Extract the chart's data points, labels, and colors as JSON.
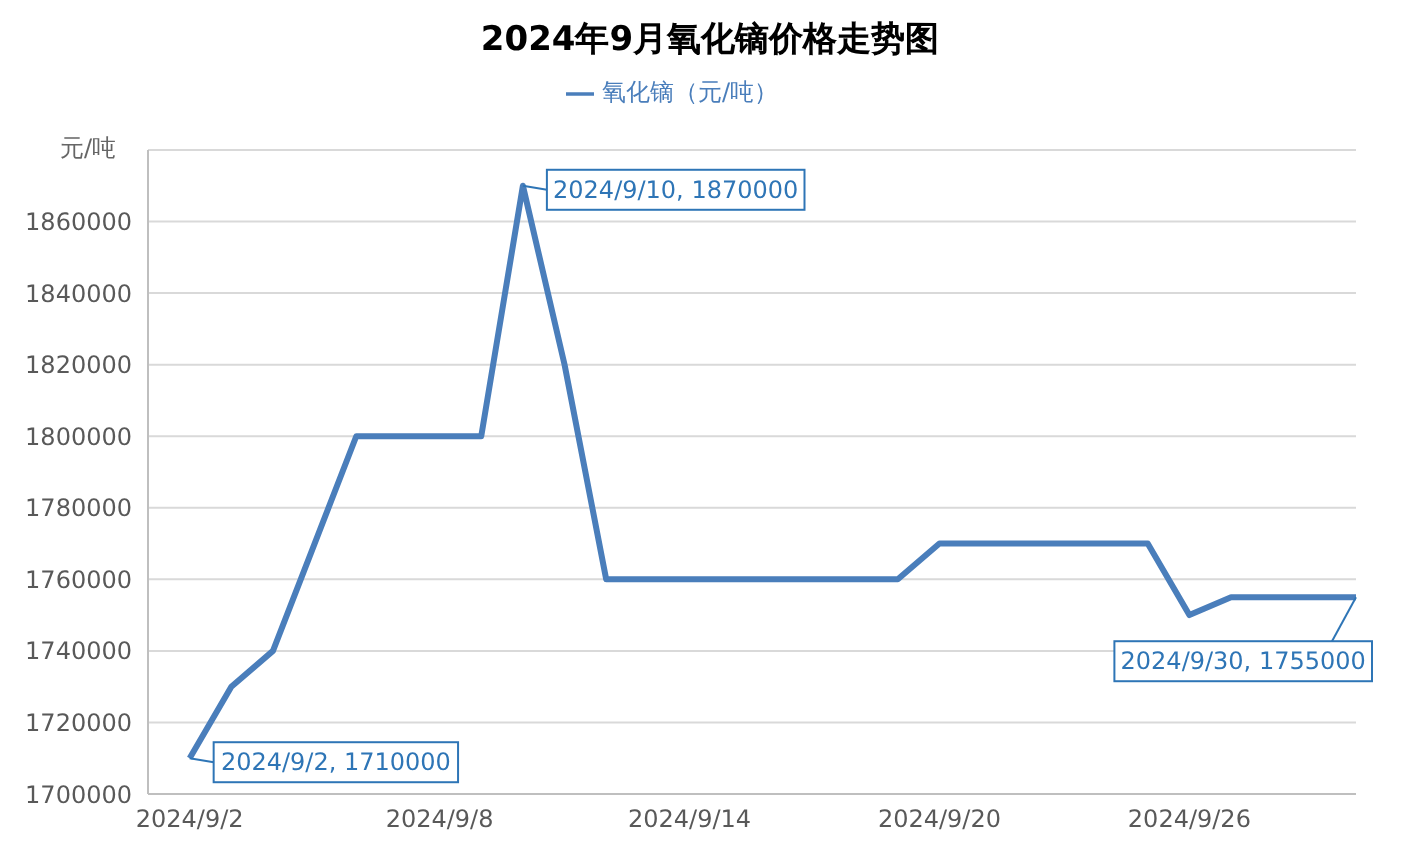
{
  "chart_data": {
    "type": "line",
    "title": "2024年9月氧化镝价格走势图",
    "ylabel": "元/吨",
    "x": [
      "2024-09-02",
      "2024-09-03",
      "2024-09-04",
      "2024-09-05",
      "2024-09-06",
      "2024-09-07",
      "2024-09-08",
      "2024-09-09",
      "2024-09-10",
      "2024-09-11",
      "2024-09-12",
      "2024-09-13",
      "2024-09-14",
      "2024-09-15",
      "2024-09-16",
      "2024-09-17",
      "2024-09-18",
      "2024-09-19",
      "2024-09-20",
      "2024-09-21",
      "2024-09-22",
      "2024-09-23",
      "2024-09-24",
      "2024-09-25",
      "2024-09-26",
      "2024-09-27",
      "2024-09-28",
      "2024-09-29",
      "2024-09-30"
    ],
    "series": [
      {
        "name": "氧化镝（元/吨）",
        "color": "#4a7ebb",
        "values": [
          1710000,
          1730000,
          1740000,
          1770000,
          1800000,
          1800000,
          1800000,
          1800000,
          1870000,
          1820000,
          1760000,
          1760000,
          1760000,
          1760000,
          1760000,
          1760000,
          1760000,
          1760000,
          1770000,
          1770000,
          1770000,
          1770000,
          1770000,
          1770000,
          1750000,
          1755000,
          1755000,
          1755000,
          1755000
        ]
      }
    ],
    "xlim": [
      "2024-09-01",
      "2024-09-30"
    ],
    "xticks": [
      {
        "value": "2024-09-02",
        "label": "2024/9/2"
      },
      {
        "value": "2024-09-08",
        "label": "2024/9/8"
      },
      {
        "value": "2024-09-14",
        "label": "2024/9/14"
      },
      {
        "value": "2024-09-20",
        "label": "2024/9/20"
      },
      {
        "value": "2024-09-26",
        "label": "2024/9/26"
      }
    ],
    "ylim": [
      1700000,
      1880000
    ],
    "yticks": [
      1700000,
      1720000,
      1740000,
      1760000,
      1780000,
      1800000,
      1820000,
      1840000,
      1860000
    ],
    "grid": "y",
    "legend": "top",
    "marker": "none",
    "line_style": "solid",
    "annotations": [
      {
        "text": "2024/9/2, 1710000",
        "x": "2024-09-02",
        "y": 1710000
      },
      {
        "text": "2024/9/10, 1870000",
        "x": "2024-09-10",
        "y": 1870000
      },
      {
        "text": "2024/9/30, 1755000",
        "x": "2024-09-30",
        "y": 1755000
      }
    ]
  }
}
